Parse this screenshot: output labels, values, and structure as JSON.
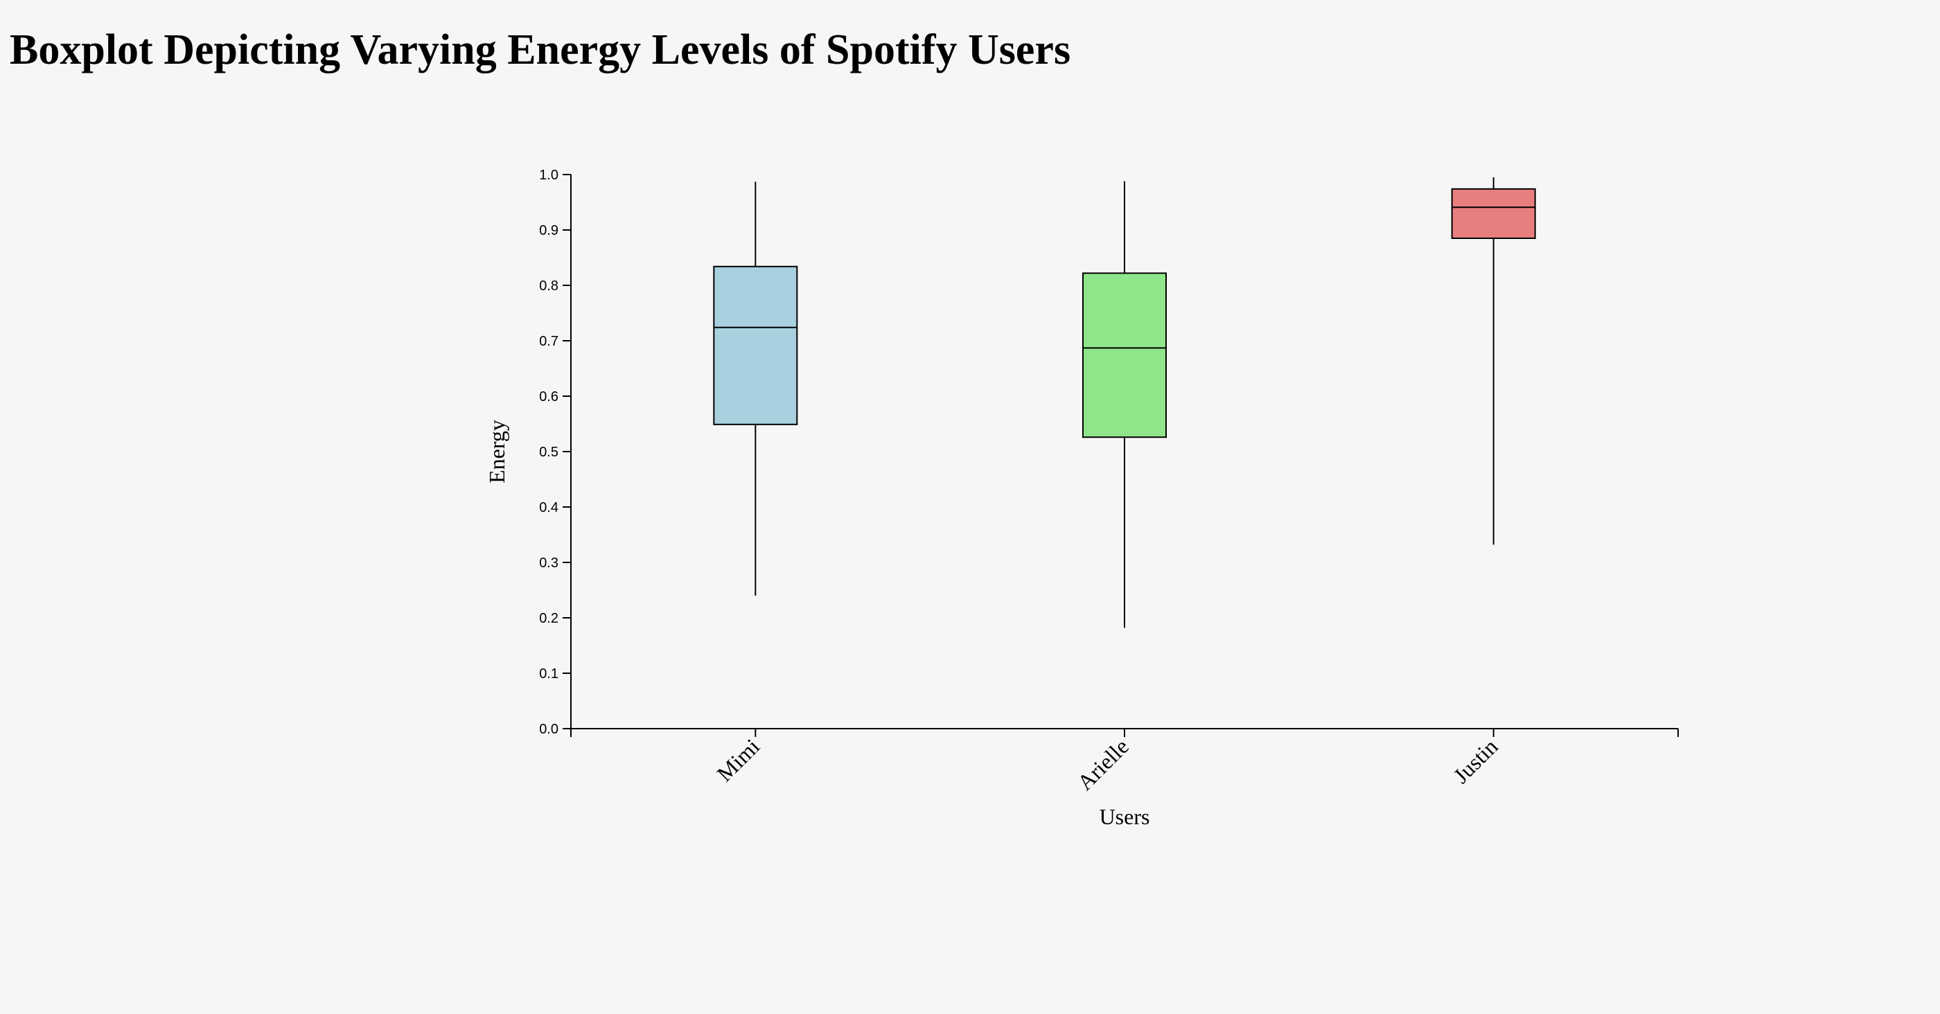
{
  "title": "Boxplot Depicting Varying Energy Levels of Spotify Users",
  "chart_data": {
    "type": "boxplot",
    "title": "Boxplot Depicting Varying Energy Levels of Spotify Users",
    "xlabel": "Users",
    "ylabel": "Energy",
    "ylim": [
      0,
      1
    ],
    "yticks": [
      "0.0",
      "0.1",
      "0.2",
      "0.3",
      "0.4",
      "0.5",
      "0.6",
      "0.7",
      "0.8",
      "0.9",
      "1.0"
    ],
    "grid": false,
    "categories": [
      "Mimi",
      "Arielle",
      "Justin"
    ],
    "boxes": [
      {
        "category": "Mimi",
        "min": 0.24,
        "q1": 0.549,
        "median": 0.724,
        "q3": 0.834,
        "max": 0.987,
        "color": "#a8d0de"
      },
      {
        "category": "Arielle",
        "min": 0.182,
        "q1": 0.526,
        "median": 0.687,
        "q3": 0.822,
        "max": 0.988,
        "color": "#8fe68a"
      },
      {
        "category": "Justin",
        "min": 0.332,
        "q1": 0.885,
        "median": 0.941,
        "q3": 0.974,
        "max": 0.995,
        "color": "#e87f7f"
      }
    ]
  }
}
